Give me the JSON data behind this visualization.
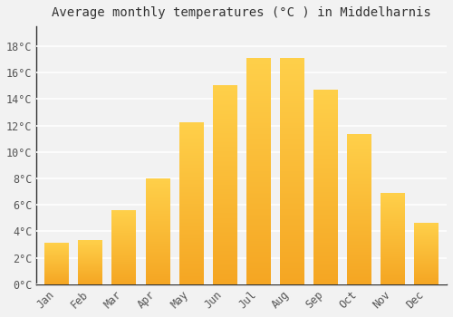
{
  "title": "Average monthly temperatures (°C ) in Middelharnis",
  "months": [
    "Jan",
    "Feb",
    "Mar",
    "Apr",
    "May",
    "Jun",
    "Jul",
    "Aug",
    "Sep",
    "Oct",
    "Nov",
    "Dec"
  ],
  "values": [
    3.1,
    3.3,
    5.6,
    8.0,
    12.2,
    15.0,
    17.1,
    17.1,
    14.7,
    11.3,
    6.9,
    4.6
  ],
  "bar_color_top": "#F5A623",
  "bar_color_bottom": "#FFD04A",
  "yticks": [
    0,
    2,
    4,
    6,
    8,
    10,
    12,
    14,
    16,
    18
  ],
  "ytick_labels": [
    "0°C",
    "2°C",
    "4°C",
    "6°C",
    "8°C",
    "10°C",
    "12°C",
    "14°C",
    "16°C",
    "18°C"
  ],
  "ylim": [
    0,
    19.5
  ],
  "background_color": "#F2F2F2",
  "grid_color": "#FFFFFF",
  "title_fontsize": 10,
  "tick_fontsize": 8.5,
  "font_family": "monospace"
}
